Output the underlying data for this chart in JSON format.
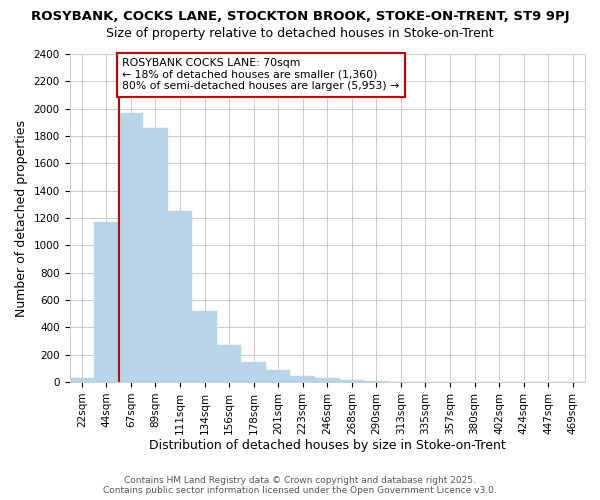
{
  "title": "ROSYBANK, COCKS LANE, STOCKTON BROOK, STOKE-ON-TRENT, ST9 9PJ",
  "subtitle": "Size of property relative to detached houses in Stoke-on-Trent",
  "xlabel": "Distribution of detached houses by size in Stoke-on-Trent",
  "ylabel": "Number of detached properties",
  "categories": [
    "22sqm",
    "44sqm",
    "67sqm",
    "89sqm",
    "111sqm",
    "134sqm",
    "156sqm",
    "178sqm",
    "201sqm",
    "223sqm",
    "246sqm",
    "268sqm",
    "290sqm",
    "313sqm",
    "335sqm",
    "357sqm",
    "380sqm",
    "402sqm",
    "424sqm",
    "447sqm",
    "469sqm"
  ],
  "values": [
    30,
    1170,
    1970,
    1860,
    1250,
    520,
    275,
    150,
    85,
    45,
    30,
    15,
    5,
    0,
    0,
    0,
    0,
    0,
    0,
    0,
    0
  ],
  "bar_color": "#b8d4e8",
  "red_line_x": 2,
  "annotation_title": "ROSYBANK COCKS LANE: 70sqm",
  "annotation_line1": "← 18% of detached houses are smaller (1,360)",
  "annotation_line2": "80% of semi-detached houses are larger (5,953) →",
  "annotation_box_facecolor": "#ffffff",
  "annotation_border_color": "#cc0000",
  "ylim": [
    0,
    2400
  ],
  "yticks": [
    0,
    200,
    400,
    600,
    800,
    1000,
    1200,
    1400,
    1600,
    1800,
    2000,
    2200,
    2400
  ],
  "title_fontsize": 9.5,
  "subtitle_fontsize": 9,
  "tick_fontsize": 7.5,
  "label_fontsize": 9,
  "footer1": "Contains HM Land Registry data © Crown copyright and database right 2025.",
  "footer2": "Contains public sector information licensed under the Open Government Licence v3.0.",
  "background_color": "#ffffff",
  "grid_color": "#cccccc"
}
